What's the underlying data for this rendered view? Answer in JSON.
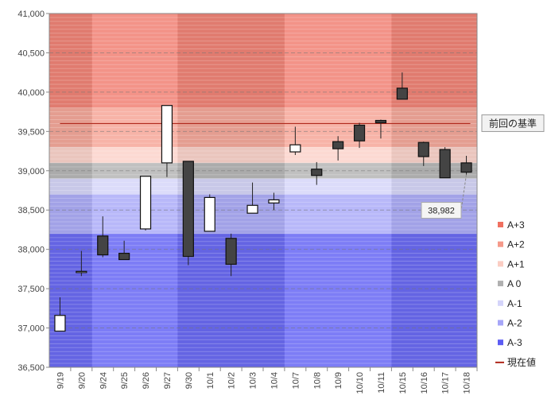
{
  "chart_data": {
    "type": "candlestick",
    "title": "",
    "xlabel": "",
    "ylabel": "",
    "ylim": [
      36500,
      41000
    ],
    "ytick_step": 500,
    "ytick_labels": [
      "36,500",
      "37,000",
      "37,500",
      "38,000",
      "38,500",
      "39,000",
      "39,500",
      "40,000",
      "40,500",
      "41,000"
    ],
    "categories": [
      "9/19",
      "9/20",
      "9/24",
      "9/25",
      "9/26",
      "9/27",
      "9/30",
      "10/1",
      "10/2",
      "10/3",
      "10/4",
      "10/7",
      "10/8",
      "10/9",
      "10/10",
      "10/11",
      "10/15",
      "10/16",
      "10/17",
      "10/18"
    ],
    "week_shading": [
      {
        "from": 0,
        "to": 1,
        "tone": "dark"
      },
      {
        "from": 2,
        "to": 5,
        "tone": "light"
      },
      {
        "from": 6,
        "to": 10,
        "tone": "dark"
      },
      {
        "from": 11,
        "to": 15,
        "tone": "light"
      },
      {
        "from": 16,
        "to": 19,
        "tone": "dark"
      }
    ],
    "series": [
      {
        "date": "9/19",
        "open": 36960,
        "high": 37390,
        "low": 36960,
        "close": 37160
      },
      {
        "date": "9/20",
        "open": 37710,
        "high": 37980,
        "low": 37660,
        "close": 37720
      },
      {
        "date": "9/24",
        "open": 38170,
        "high": 38420,
        "low": 37900,
        "close": 37930
      },
      {
        "date": "9/25",
        "open": 37950,
        "high": 38110,
        "low": 37870,
        "close": 37870
      },
      {
        "date": "9/26",
        "open": 38260,
        "high": 38930,
        "low": 38240,
        "close": 38930
      },
      {
        "date": "9/27",
        "open": 39100,
        "high": 39830,
        "low": 38920,
        "close": 39830
      },
      {
        "date": "9/30",
        "open": 39120,
        "high": 39120,
        "low": 37800,
        "close": 37910
      },
      {
        "date": "10/1",
        "open": 38230,
        "high": 38700,
        "low": 38230,
        "close": 38660
      },
      {
        "date": "10/2",
        "open": 38140,
        "high": 38200,
        "low": 37660,
        "close": 37810
      },
      {
        "date": "10/3",
        "open": 38460,
        "high": 38850,
        "low": 38460,
        "close": 38560
      },
      {
        "date": "10/4",
        "open": 38590,
        "high": 38720,
        "low": 38500,
        "close": 38630
      },
      {
        "date": "10/7",
        "open": 39240,
        "high": 39560,
        "low": 39200,
        "close": 39330
      },
      {
        "date": "10/8",
        "open": 39020,
        "high": 39110,
        "low": 38820,
        "close": 38940
      },
      {
        "date": "10/9",
        "open": 39370,
        "high": 39440,
        "low": 39130,
        "close": 39280
      },
      {
        "date": "10/10",
        "open": 39580,
        "high": 39610,
        "low": 39290,
        "close": 39380
      },
      {
        "date": "10/11",
        "open": 39640,
        "high": 39650,
        "low": 39410,
        "close": 39610
      },
      {
        "date": "10/15",
        "open": 40050,
        "high": 40250,
        "low": 39910,
        "close": 39910
      },
      {
        "date": "10/16",
        "open": 39360,
        "high": 39370,
        "low": 39060,
        "close": 39180
      },
      {
        "date": "10/17",
        "open": 39270,
        "high": 39300,
        "low": 38910,
        "close": 38910
      },
      {
        "date": "10/18",
        "open": 39100,
        "high": 39190,
        "low": 38950,
        "close": 38982
      }
    ],
    "bands": [
      {
        "name": "A+3",
        "from": 39800,
        "to": 41000,
        "color": "#f07060",
        "alpha": 0.85
      },
      {
        "name": "A+2",
        "from": 39300,
        "to": 39800,
        "color": "#f59a8a",
        "alpha": 0.85
      },
      {
        "name": "A+1",
        "from": 39100,
        "to": 39300,
        "color": "#fbcdc3",
        "alpha": 0.85
      },
      {
        "name": "A 0",
        "from": 38900,
        "to": 39100,
        "color": "#b0b0b0",
        "alpha": 0.9
      },
      {
        "name": "A-1",
        "from": 38700,
        "to": 38900,
        "color": "#d4d4fa",
        "alpha": 0.9
      },
      {
        "name": "A-2",
        "from": 38200,
        "to": 38700,
        "color": "#a6a6f8",
        "alpha": 0.9
      },
      {
        "name": "A-3",
        "from": 36500,
        "to": 38200,
        "color": "#5c5cf4",
        "alpha": 0.9
      }
    ],
    "reference_line": {
      "label": "前回の基準",
      "value": 39600,
      "color": "#b0281c"
    },
    "current_value": {
      "label": "現在値",
      "value": 38982,
      "display": "38,982",
      "color": "#b0281c"
    },
    "legend": [
      "A+3",
      "A+2",
      "A+1",
      "A 0",
      "A-1",
      "A-2",
      "A-3",
      "現在値"
    ],
    "legend_position": "right"
  }
}
